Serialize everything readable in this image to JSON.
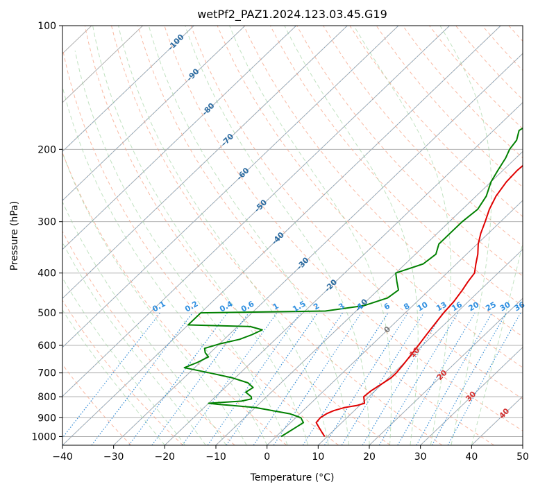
{
  "chart_data": {
    "type": "line",
    "title": "wetPf2_PAZ1.2024.123.03.45.G19",
    "xlabel": "Temperature (°C)",
    "ylabel": "Pressure (hPa)",
    "xlim": [
      -40,
      50
    ],
    "ylim": [
      1050,
      100
    ],
    "y_scale": "log",
    "x_ticks": [
      "−40",
      "−30",
      "−20",
      "−10",
      "0",
      "10",
      "20",
      "30",
      "40",
      "50"
    ],
    "y_ticks": [
      "100",
      "200",
      "300",
      "400",
      "500",
      "600",
      "700",
      "800",
      "900",
      "1000"
    ],
    "grid": true,
    "series": [
      {
        "color": "#e00000",
        "pressure": [
          1000,
          975,
          950,
          925,
          900,
          880,
          865,
          850,
          840,
          830,
          820,
          800,
          775,
          750,
          720,
          700,
          670,
          640,
          600,
          560,
          530,
          500,
          470,
          440,
          420,
          400,
          380,
          360,
          340,
          320,
          300,
          280,
          260,
          240,
          225,
          215,
          208,
          200,
          195,
          190,
          180,
          170,
          160,
          150,
          140,
          130,
          120,
          110,
          100
        ],
        "temperature": [
          9.5,
          8,
          6.5,
          5,
          4.8,
          5.2,
          6,
          7.5,
          9.5,
          10.5,
          10,
          9,
          9.2,
          9.8,
          10.5,
          10.5,
          10.2,
          9.8,
          9.2,
          8.5,
          8,
          7.5,
          7.2,
          6.5,
          5.9,
          5.4,
          3.8,
          2.2,
          0.2,
          -1.5,
          -3,
          -4.7,
          -6.1,
          -7,
          -7.2,
          -7,
          -5.5,
          -2.6,
          -1.3,
          -0.5,
          0.5,
          1.5,
          3,
          5,
          8,
          11,
          14,
          17.5,
          21.5
        ]
      },
      {
        "color": "#008000",
        "pressure": [
          1000,
          975,
          950,
          925,
          900,
          880,
          865,
          850,
          840,
          835,
          830,
          820,
          810,
          800,
          780,
          760,
          740,
          720,
          700,
          680,
          660,
          640,
          625,
          610,
          595,
          580,
          565,
          550,
          540,
          535,
          520,
          505,
          500,
          495,
          480,
          460,
          440,
          420,
          400,
          380,
          360,
          340,
          320,
          300,
          280,
          260,
          240,
          225,
          210,
          200,
          190,
          180,
          170,
          160,
          150,
          140,
          130,
          120,
          110,
          100
        ],
        "temperature": [
          1,
          1.5,
          2,
          2.5,
          1,
          -2,
          -6,
          -10,
          -15,
          -18,
          -20,
          -14,
          -12.5,
          -13,
          -15,
          -14.5,
          -16.5,
          -20.5,
          -26,
          -32,
          -30.5,
          -29.5,
          -31,
          -32,
          -30,
          -27,
          -25.5,
          -24.5,
          -27.5,
          -40,
          -40,
          -40,
          -40,
          -16,
          -9.5,
          -6.5,
          -6,
          -8,
          -10,
          -6.5,
          -6,
          -7.5,
          -7.5,
          -7.5,
          -7,
          -8,
          -10,
          -11,
          -12,
          -13,
          -13.5,
          -15,
          -14,
          -12.5,
          -9.5,
          -8,
          -5,
          -2.5,
          0,
          3
        ]
      }
    ],
    "isotherm_labels": [
      "-100",
      "-90",
      "-80",
      "-70",
      "-60",
      "-50",
      "-40",
      "-30",
      "-20",
      "-10",
      "0",
      "10",
      "20",
      "30",
      "40"
    ],
    "mixing_ratio_labels": [
      "0.1",
      "0.2",
      "0.4",
      "0.6",
      "1",
      "1.5",
      "2",
      "3",
      "4",
      "6",
      "8",
      "10",
      "13",
      "16",
      "20",
      "25",
      "30",
      "36"
    ]
  }
}
